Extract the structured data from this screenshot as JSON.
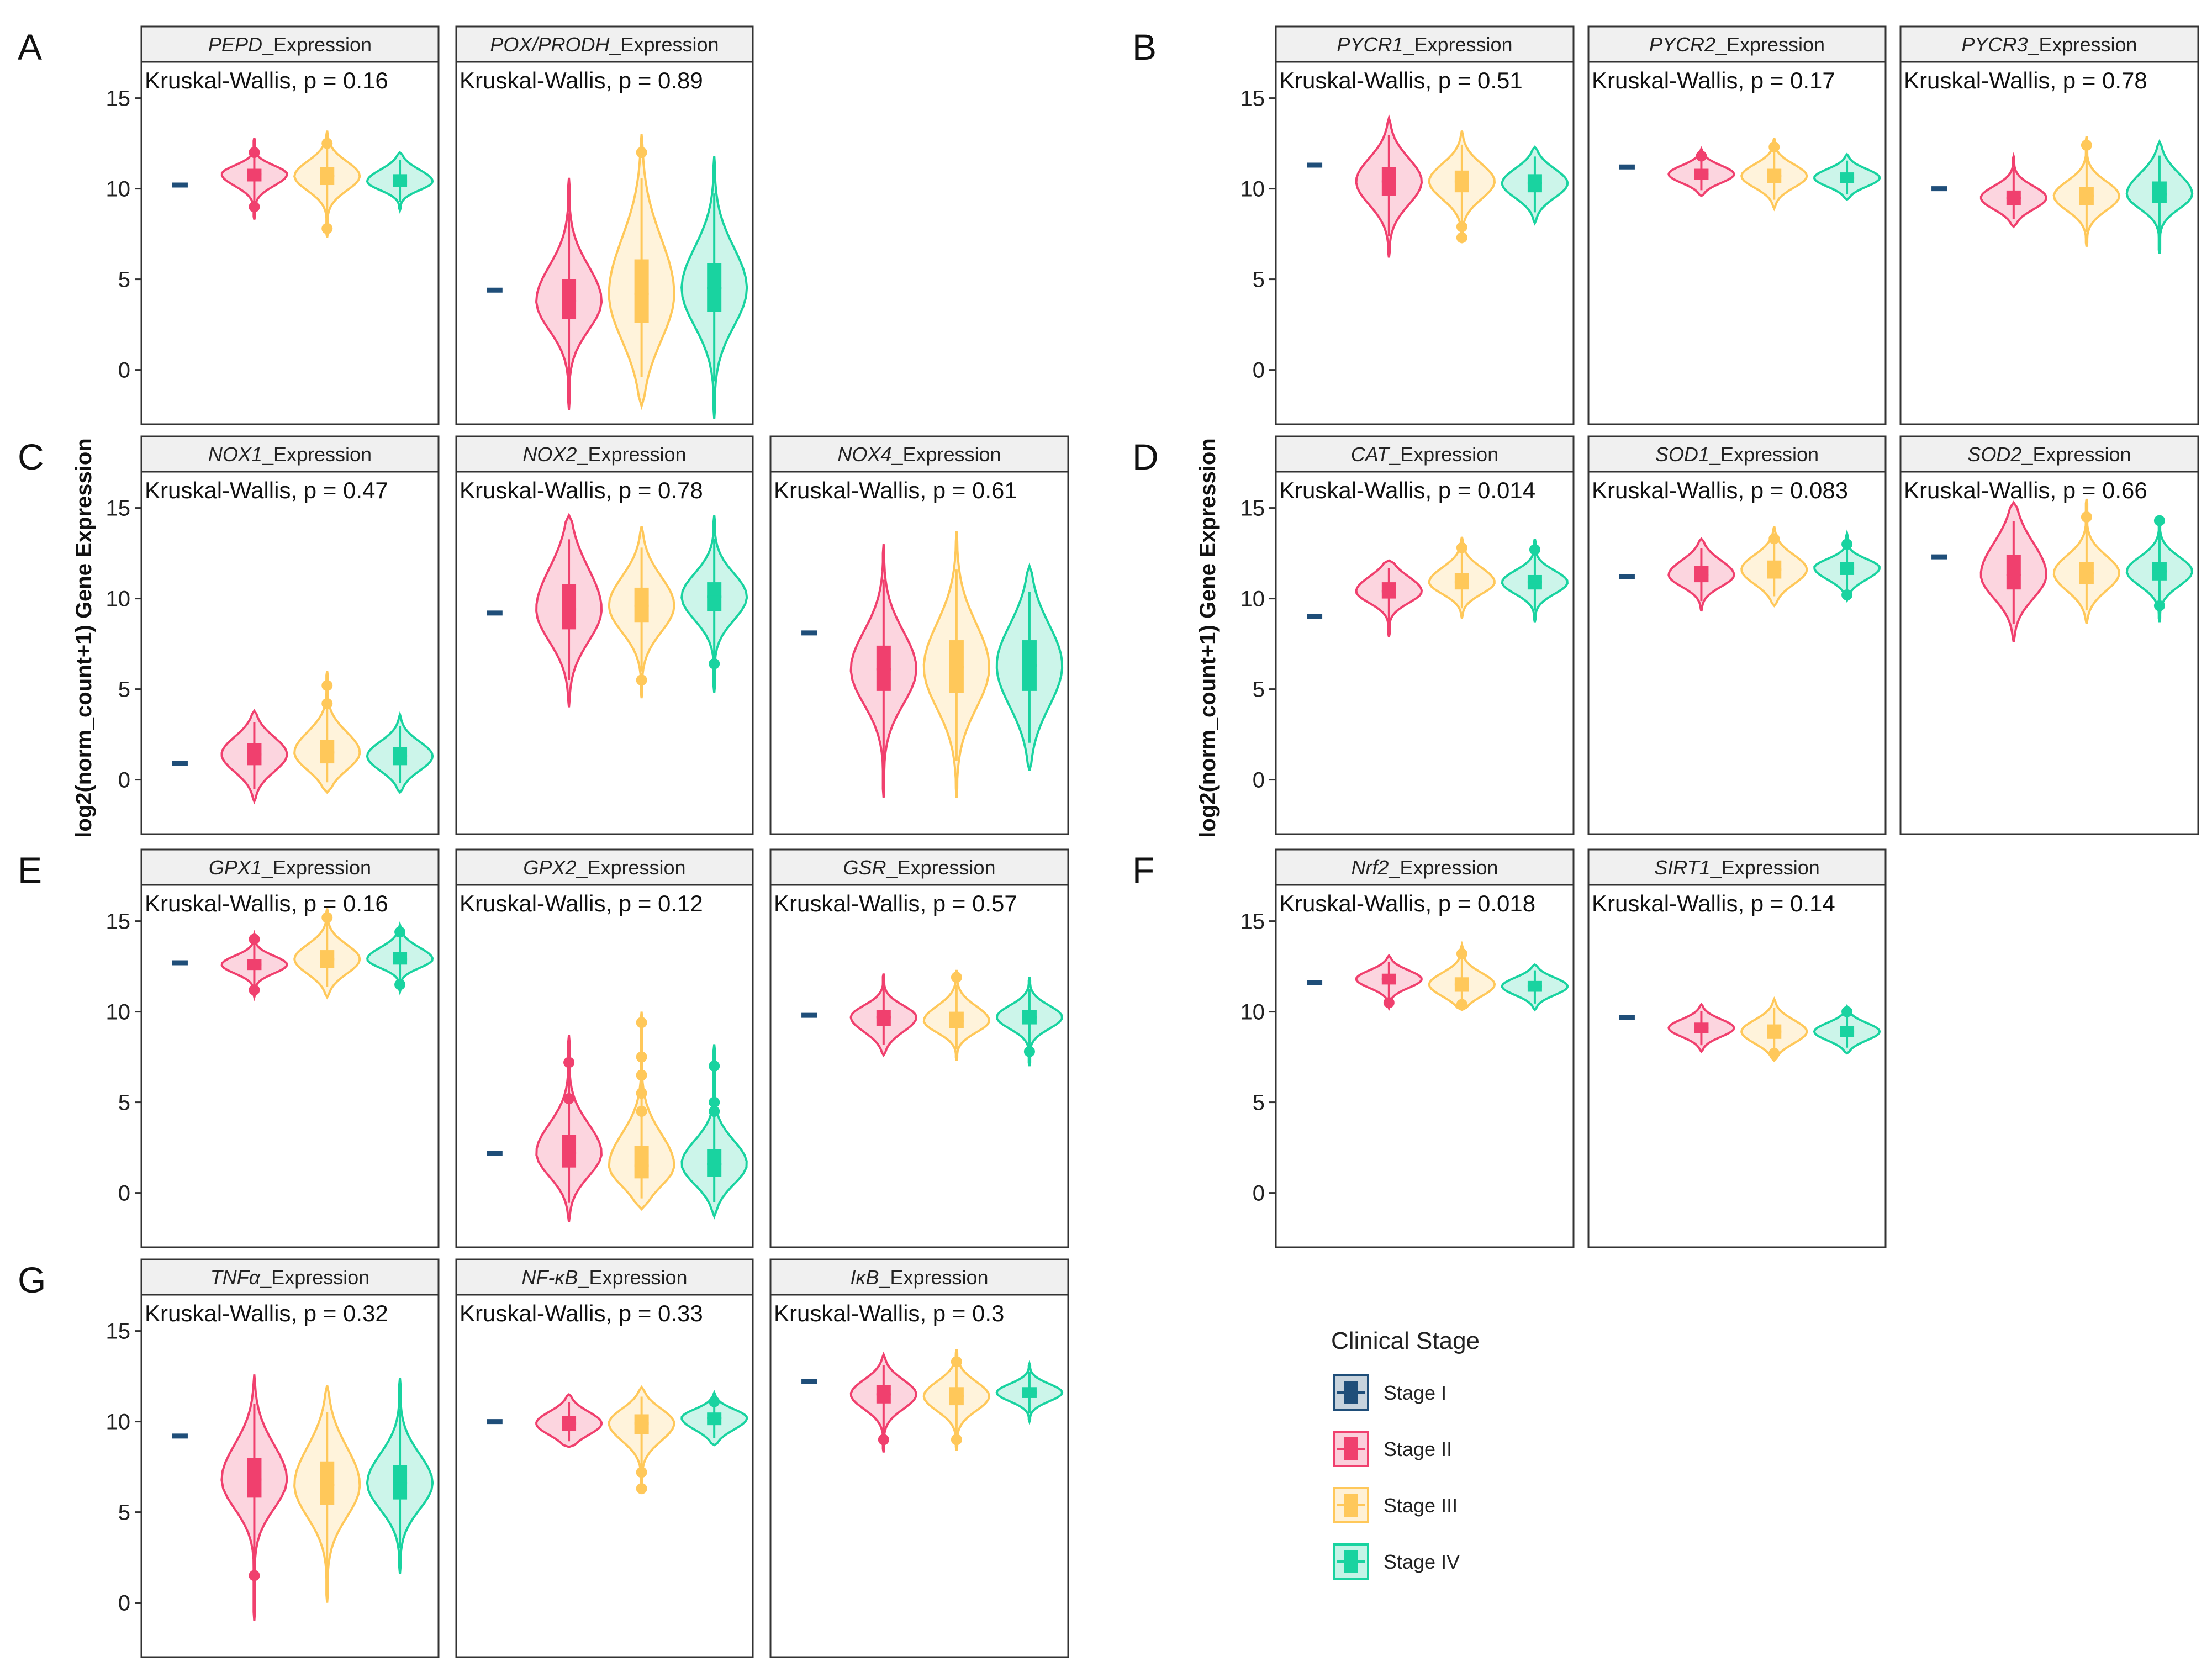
{
  "chart_data": {
    "type": "violin",
    "y_axis_title": "log2(norm_count+1) Gene Expression",
    "y_ticks": [
      0,
      5,
      10,
      15
    ],
    "ylim": [
      -3,
      17
    ],
    "stat_prefix": "Kruskal-Wallis, p = ",
    "strip_suffix": "_Expression",
    "legend": {
      "title": "Clinical Stage",
      "items": [
        {
          "label": "Stage I",
          "color": "#1f4e79"
        },
        {
          "label": "Stage II",
          "color": "#f0406e"
        },
        {
          "label": "Stage III",
          "color": "#ffc85a"
        },
        {
          "label": "Stage IV",
          "color": "#19d3a0"
        }
      ]
    },
    "panels": [
      {
        "label": "A",
        "genes": [
          {
            "gene": "PEPD",
            "p": "0.16",
            "stage_I": 10.2,
            "groups": [
              {
                "median": 10.8,
                "q1": 10.4,
                "q3": 11.1,
                "min": 8.3,
                "max": 12.8,
                "outliers": [
                  12.0,
                  9.0
                ]
              },
              {
                "median": 10.7,
                "q1": 10.2,
                "q3": 11.2,
                "min": 7.3,
                "max": 13.2,
                "outliers": [
                  12.5,
                  7.8
                ]
              },
              {
                "median": 10.4,
                "q1": 10.1,
                "q3": 10.8,
                "min": 8.8,
                "max": 12.0,
                "outliers": []
              }
            ]
          },
          {
            "gene": "POX/PRODH",
            "p": "0.89",
            "stage_I": 4.4,
            "groups": [
              {
                "median": 3.8,
                "q1": 2.8,
                "q3": 5.0,
                "min": -2.2,
                "max": 10.6,
                "outliers": []
              },
              {
                "median": 4.2,
                "q1": 2.6,
                "q3": 6.1,
                "min": -2.0,
                "max": 13.0,
                "outliers": [
                  12.0
                ]
              },
              {
                "median": 4.5,
                "q1": 3.2,
                "q3": 5.9,
                "min": -2.7,
                "max": 11.8,
                "outliers": []
              }
            ]
          }
        ]
      },
      {
        "label": "B",
        "genes": [
          {
            "gene": "PYCR1",
            "p": "0.51",
            "stage_I": 11.3,
            "groups": [
              {
                "median": 10.4,
                "q1": 9.6,
                "q3": 11.2,
                "min": 6.2,
                "max": 13.9,
                "outliers": []
              },
              {
                "median": 10.4,
                "q1": 9.8,
                "q3": 11.0,
                "min": 7.0,
                "max": 13.2,
                "outliers": [
                  7.9,
                  7.3
                ]
              },
              {
                "median": 10.3,
                "q1": 9.8,
                "q3": 10.8,
                "min": 8.1,
                "max": 12.3,
                "outliers": []
              }
            ]
          },
          {
            "gene": "PYCR2",
            "p": "0.17",
            "stage_I": 11.2,
            "groups": [
              {
                "median": 10.8,
                "q1": 10.5,
                "q3": 11.1,
                "min": 9.6,
                "max": 12.2,
                "outliers": [
                  11.8
                ]
              },
              {
                "median": 10.7,
                "q1": 10.3,
                "q3": 11.1,
                "min": 8.9,
                "max": 12.8,
                "outliers": [
                  12.3
                ]
              },
              {
                "median": 10.6,
                "q1": 10.3,
                "q3": 10.9,
                "min": 9.4,
                "max": 11.9,
                "outliers": []
              }
            ]
          },
          {
            "gene": "PYCR3",
            "p": "0.78",
            "stage_I": 10.0,
            "groups": [
              {
                "median": 9.5,
                "q1": 9.1,
                "q3": 9.9,
                "min": 7.9,
                "max": 11.8,
                "outliers": []
              },
              {
                "median": 9.6,
                "q1": 9.1,
                "q3": 10.1,
                "min": 6.8,
                "max": 12.9,
                "outliers": [
                  12.4
                ]
              },
              {
                "median": 9.7,
                "q1": 9.2,
                "q3": 10.4,
                "min": 6.4,
                "max": 12.6,
                "outliers": []
              }
            ]
          }
        ]
      },
      {
        "label": "C",
        "genes": [
          {
            "gene": "NOX1",
            "p": "0.47",
            "stage_I": 0.9,
            "groups": [
              {
                "median": 1.4,
                "q1": 0.8,
                "q3": 2.0,
                "min": -1.2,
                "max": 3.8,
                "outliers": []
              },
              {
                "median": 1.5,
                "q1": 0.9,
                "q3": 2.2,
                "min": -0.7,
                "max": 6.0,
                "outliers": [
                  4.2,
                  5.2
                ]
              },
              {
                "median": 1.3,
                "q1": 0.8,
                "q3": 1.8,
                "min": -0.7,
                "max": 3.6,
                "outliers": []
              }
            ]
          },
          {
            "gene": "NOX2",
            "p": "0.78",
            "stage_I": 9.2,
            "groups": [
              {
                "median": 9.4,
                "q1": 8.3,
                "q3": 10.8,
                "min": 4.0,
                "max": 14.6,
                "outliers": []
              },
              {
                "median": 9.6,
                "q1": 8.7,
                "q3": 10.6,
                "min": 4.5,
                "max": 14.0,
                "outliers": [
                  5.5
                ]
              },
              {
                "median": 10.1,
                "q1": 9.3,
                "q3": 10.9,
                "min": 4.8,
                "max": 14.6,
                "outliers": [
                  6.4
                ]
              }
            ]
          },
          {
            "gene": "NOX4",
            "p": "0.61",
            "stage_I": 8.1,
            "groups": [
              {
                "median": 6.1,
                "q1": 4.9,
                "q3": 7.4,
                "min": -1.0,
                "max": 13.0,
                "outliers": []
              },
              {
                "median": 6.2,
                "q1": 4.8,
                "q3": 7.7,
                "min": -1.0,
                "max": 13.7,
                "outliers": []
              },
              {
                "median": 6.3,
                "q1": 4.9,
                "q3": 7.7,
                "min": 0.5,
                "max": 11.8,
                "outliers": []
              }
            ]
          }
        ]
      },
      {
        "label": "D",
        "genes": [
          {
            "gene": "CAT",
            "p": "0.014",
            "stage_I": 9.0,
            "groups": [
              {
                "median": 10.4,
                "q1": 10.0,
                "q3": 10.9,
                "min": 7.9,
                "max": 12.1,
                "outliers": []
              },
              {
                "median": 10.9,
                "q1": 10.5,
                "q3": 11.4,
                "min": 8.9,
                "max": 13.4,
                "outliers": [
                  12.8
                ]
              },
              {
                "median": 10.9,
                "q1": 10.5,
                "q3": 11.3,
                "min": 8.7,
                "max": 13.3,
                "outliers": [
                  12.7
                ]
              }
            ]
          },
          {
            "gene": "SOD1",
            "p": "0.083",
            "stage_I": 11.2,
            "groups": [
              {
                "median": 11.3,
                "q1": 10.9,
                "q3": 11.8,
                "min": 9.3,
                "max": 13.3,
                "outliers": []
              },
              {
                "median": 11.6,
                "q1": 11.1,
                "q3": 12.1,
                "min": 9.6,
                "max": 14.0,
                "outliers": [
                  13.3
                ]
              },
              {
                "median": 11.7,
                "q1": 11.3,
                "q3": 12.0,
                "min": 9.9,
                "max": 13.6,
                "outliers": [
                  10.2,
                  13.0
                ]
              }
            ]
          },
          {
            "gene": "SOD2",
            "p": "0.66",
            "stage_I": 12.3,
            "groups": [
              {
                "median": 11.3,
                "q1": 10.5,
                "q3": 12.4,
                "min": 7.6,
                "max": 15.3,
                "outliers": []
              },
              {
                "median": 11.4,
                "q1": 10.8,
                "q3": 12.0,
                "min": 8.6,
                "max": 15.5,
                "outliers": [
                  14.5
                ]
              },
              {
                "median": 11.5,
                "q1": 11.0,
                "q3": 12.0,
                "min": 8.7,
                "max": 14.6,
                "outliers": [
                  9.6,
                  14.3
                ]
              }
            ]
          }
        ]
      },
      {
        "label": "E",
        "genes": [
          {
            "gene": "GPX1",
            "p": "0.16",
            "stage_I": 12.7,
            "groups": [
              {
                "median": 12.6,
                "q1": 12.3,
                "q3": 12.9,
                "min": 10.8,
                "max": 14.3,
                "outliers": [
                  11.2,
                  14.0
                ]
              },
              {
                "median": 12.9,
                "q1": 12.4,
                "q3": 13.4,
                "min": 10.8,
                "max": 15.7,
                "outliers": [
                  15.2
                ]
              },
              {
                "median": 12.9,
                "q1": 12.6,
                "q3": 13.3,
                "min": 11.1,
                "max": 14.8,
                "outliers": [
                  14.4,
                  11.5
                ]
              }
            ]
          },
          {
            "gene": "GPX2",
            "p": "0.12",
            "stage_I": 2.2,
            "groups": [
              {
                "median": 2.2,
                "q1": 1.4,
                "q3": 3.2,
                "min": -1.6,
                "max": 8.7,
                "outliers": [
                  5.2,
                  7.2
                ]
              },
              {
                "median": 1.5,
                "q1": 0.8,
                "q3": 2.6,
                "min": -0.9,
                "max": 10.0,
                "outliers": [
                  4.5,
                  5.5,
                  6.5,
                  7.5,
                  9.4
                ]
              },
              {
                "median": 1.6,
                "q1": 0.9,
                "q3": 2.4,
                "min": -1.3,
                "max": 8.2,
                "outliers": [
                  4.5,
                  5.0,
                  7.0
                ]
              }
            ]
          },
          {
            "gene": "GSR",
            "p": "0.57",
            "stage_I": 9.8,
            "groups": [
              {
                "median": 9.7,
                "q1": 9.2,
                "q3": 10.1,
                "min": 7.6,
                "max": 12.1,
                "outliers": []
              },
              {
                "median": 9.5,
                "q1": 9.1,
                "q3": 10.0,
                "min": 7.3,
                "max": 12.3,
                "outliers": [
                  11.9
                ]
              },
              {
                "median": 9.7,
                "q1": 9.3,
                "q3": 10.1,
                "min": 7.0,
                "max": 11.9,
                "outliers": [
                  7.8
                ]
              }
            ]
          }
        ]
      },
      {
        "label": "F",
        "genes": [
          {
            "gene": "Nrf2",
            "p": "0.018",
            "stage_I": 11.6,
            "groups": [
              {
                "median": 11.8,
                "q1": 11.5,
                "q3": 12.1,
                "min": 10.2,
                "max": 13.1,
                "outliers": [
                  10.5
                ]
              },
              {
                "median": 11.5,
                "q1": 11.1,
                "q3": 11.9,
                "min": 10.1,
                "max": 13.7,
                "outliers": [
                  10.4,
                  13.2
                ]
              },
              {
                "median": 11.4,
                "q1": 11.1,
                "q3": 11.7,
                "min": 10.1,
                "max": 12.6,
                "outliers": []
              }
            ]
          },
          {
            "gene": "SIRT1",
            "p": "0.14",
            "stage_I": 9.7,
            "groups": [
              {
                "median": 9.1,
                "q1": 8.8,
                "q3": 9.4,
                "min": 7.8,
                "max": 10.4,
                "outliers": []
              },
              {
                "median": 8.9,
                "q1": 8.5,
                "q3": 9.3,
                "min": 7.3,
                "max": 10.7,
                "outliers": [
                  7.7
                ]
              },
              {
                "median": 8.9,
                "q1": 8.6,
                "q3": 9.2,
                "min": 7.7,
                "max": 10.3,
                "outliers": [
                  10.0
                ]
              }
            ]
          }
        ]
      },
      {
        "label": "G",
        "genes": [
          {
            "gene": "TNFα",
            "p": "0.32",
            "stage_I": 9.2,
            "groups": [
              {
                "median": 6.8,
                "q1": 5.8,
                "q3": 8.0,
                "min": -1.0,
                "max": 12.6,
                "outliers": [
                  1.5
                ]
              },
              {
                "median": 6.5,
                "q1": 5.4,
                "q3": 7.8,
                "min": 0.0,
                "max": 12.0,
                "outliers": []
              },
              {
                "median": 6.6,
                "q1": 5.7,
                "q3": 7.6,
                "min": 1.6,
                "max": 12.4,
                "outliers": []
              }
            ]
          },
          {
            "gene": "NF-κB",
            "p": "0.33",
            "stage_I": 10.0,
            "groups": [
              {
                "median": 9.9,
                "q1": 9.5,
                "q3": 10.3,
                "min": 8.6,
                "max": 11.5,
                "outliers": []
              },
              {
                "median": 9.9,
                "q1": 9.3,
                "q3": 10.4,
                "min": 6.0,
                "max": 11.9,
                "outliers": [
                  6.3,
                  7.2
                ]
              },
              {
                "median": 10.2,
                "q1": 9.8,
                "q3": 10.5,
                "min": 8.7,
                "max": 11.6,
                "outliers": [
                  11.1
                ]
              }
            ]
          },
          {
            "gene": "IκB",
            "p": "0.3",
            "stage_I": 12.2,
            "groups": [
              {
                "median": 11.5,
                "q1": 11.0,
                "q3": 12.0,
                "min": 8.3,
                "max": 13.7,
                "outliers": [
                  9.0
                ]
              },
              {
                "median": 11.4,
                "q1": 10.9,
                "q3": 11.9,
                "min": 8.4,
                "max": 14.0,
                "outliers": [
                  13.3,
                  9.0
                ]
              },
              {
                "median": 11.6,
                "q1": 11.3,
                "q3": 11.9,
                "min": 10.0,
                "max": 13.2,
                "outliers": []
              }
            ]
          }
        ]
      }
    ]
  }
}
